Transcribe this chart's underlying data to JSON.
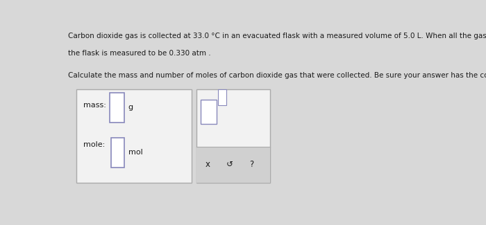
{
  "bg_color": "#d8d8d8",
  "panel_bg": "#f2f2f2",
  "box2_bottom_bg": "#d0d0d0",
  "white": "#ffffff",
  "text_color": "#1a1a1a",
  "border_color": "#aaaaaa",
  "input_border": "#8888bb",
  "line1": "Carbon dioxide gas is collected at 33.0 °C in an evacuated flask with a measured volume of 5.0 L. When all the gas has been collected, the pressure in",
  "line2": "the flask is measured to be 0.330 atm .",
  "line3": "Calculate the mass and number of moles of carbon dioxide gas that were collected. Be sure your answer has the correct number of significant digits.",
  "mass_label": "mass:",
  "mass_unit": "g",
  "mole_label": "mole:",
  "mole_unit": "mol",
  "font_size_text": 7.5,
  "font_size_label": 8.0,
  "font_size_sym": 8.5,
  "symbol_x": "x",
  "symbol_arrow": "↺",
  "symbol_q": "?"
}
